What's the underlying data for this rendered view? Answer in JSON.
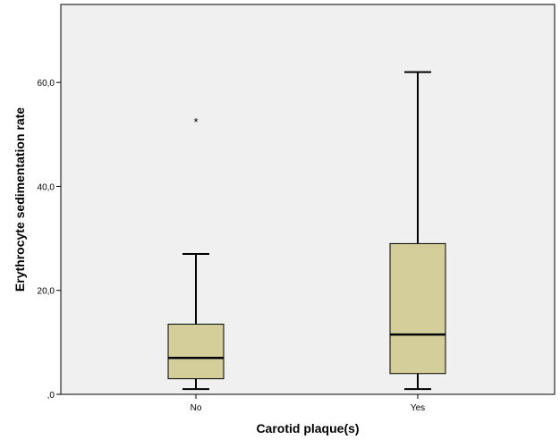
{
  "chart_data": {
    "type": "boxplot",
    "title": "",
    "xlabel": "Carotid plaque(s)",
    "ylabel": "Erythrocyte sedimentation rate",
    "ylim": [
      0,
      75
    ],
    "yticks": [
      0,
      20,
      40,
      60
    ],
    "ytick_labels": [
      ",0",
      "20,0",
      "40,0",
      "60,0"
    ],
    "categories": [
      "No",
      "Yes"
    ],
    "boxes": [
      {
        "category": "No",
        "whisker_low": 1,
        "q1": 3,
        "median": 7,
        "q3": 13.5,
        "whisker_high": 27,
        "outliers": [
          53
        ]
      },
      {
        "category": "Yes",
        "whisker_low": 1,
        "q1": 4,
        "median": 11.5,
        "q3": 29,
        "whisker_high": 62,
        "outliers": []
      }
    ],
    "outlier_marker": "*",
    "colors": {
      "plot_background": "#f0f0f0",
      "box_fill": "#d3ce9a",
      "line": "#000000"
    },
    "grid": false,
    "legend": "none"
  }
}
